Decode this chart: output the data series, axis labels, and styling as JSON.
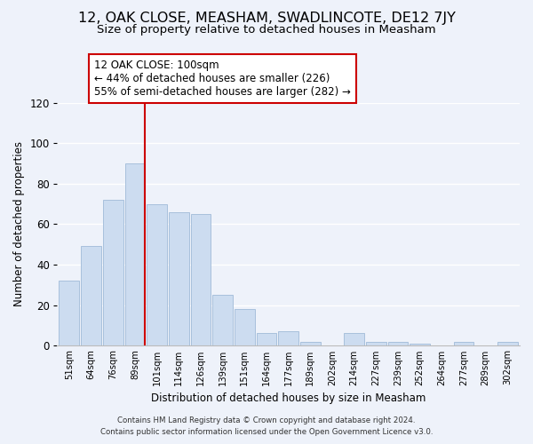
{
  "title": "12, OAK CLOSE, MEASHAM, SWADLINCOTE, DE12 7JY",
  "subtitle": "Size of property relative to detached houses in Measham",
  "xlabel": "Distribution of detached houses by size in Measham",
  "ylabel": "Number of detached properties",
  "bar_color": "#ccdcf0",
  "bar_edge_color": "#a8c0dc",
  "categories": [
    "51sqm",
    "64sqm",
    "76sqm",
    "89sqm",
    "101sqm",
    "114sqm",
    "126sqm",
    "139sqm",
    "151sqm",
    "164sqm",
    "177sqm",
    "189sqm",
    "202sqm",
    "214sqm",
    "227sqm",
    "239sqm",
    "252sqm",
    "264sqm",
    "277sqm",
    "289sqm",
    "302sqm"
  ],
  "values": [
    32,
    49,
    72,
    90,
    70,
    66,
    65,
    25,
    18,
    6,
    7,
    2,
    0,
    6,
    2,
    2,
    1,
    0,
    2,
    0,
    2
  ],
  "ylim": [
    0,
    120
  ],
  "yticks": [
    0,
    20,
    40,
    60,
    80,
    100,
    120
  ],
  "vline_color": "#cc0000",
  "annotation_title": "12 OAK CLOSE: 100sqm",
  "annotation_line1": "← 44% of detached houses are smaller (226)",
  "annotation_line2": "55% of semi-detached houses are larger (282) →",
  "annotation_box_color": "#ffffff",
  "annotation_box_edge": "#cc0000",
  "footnote1": "Contains HM Land Registry data © Crown copyright and database right 2024.",
  "footnote2": "Contains public sector information licensed under the Open Government Licence v3.0.",
  "background_color": "#eef2fa",
  "grid_color": "#ffffff",
  "title_fontsize": 11.5,
  "subtitle_fontsize": 9.5,
  "annot_fontsize": 8.5
}
